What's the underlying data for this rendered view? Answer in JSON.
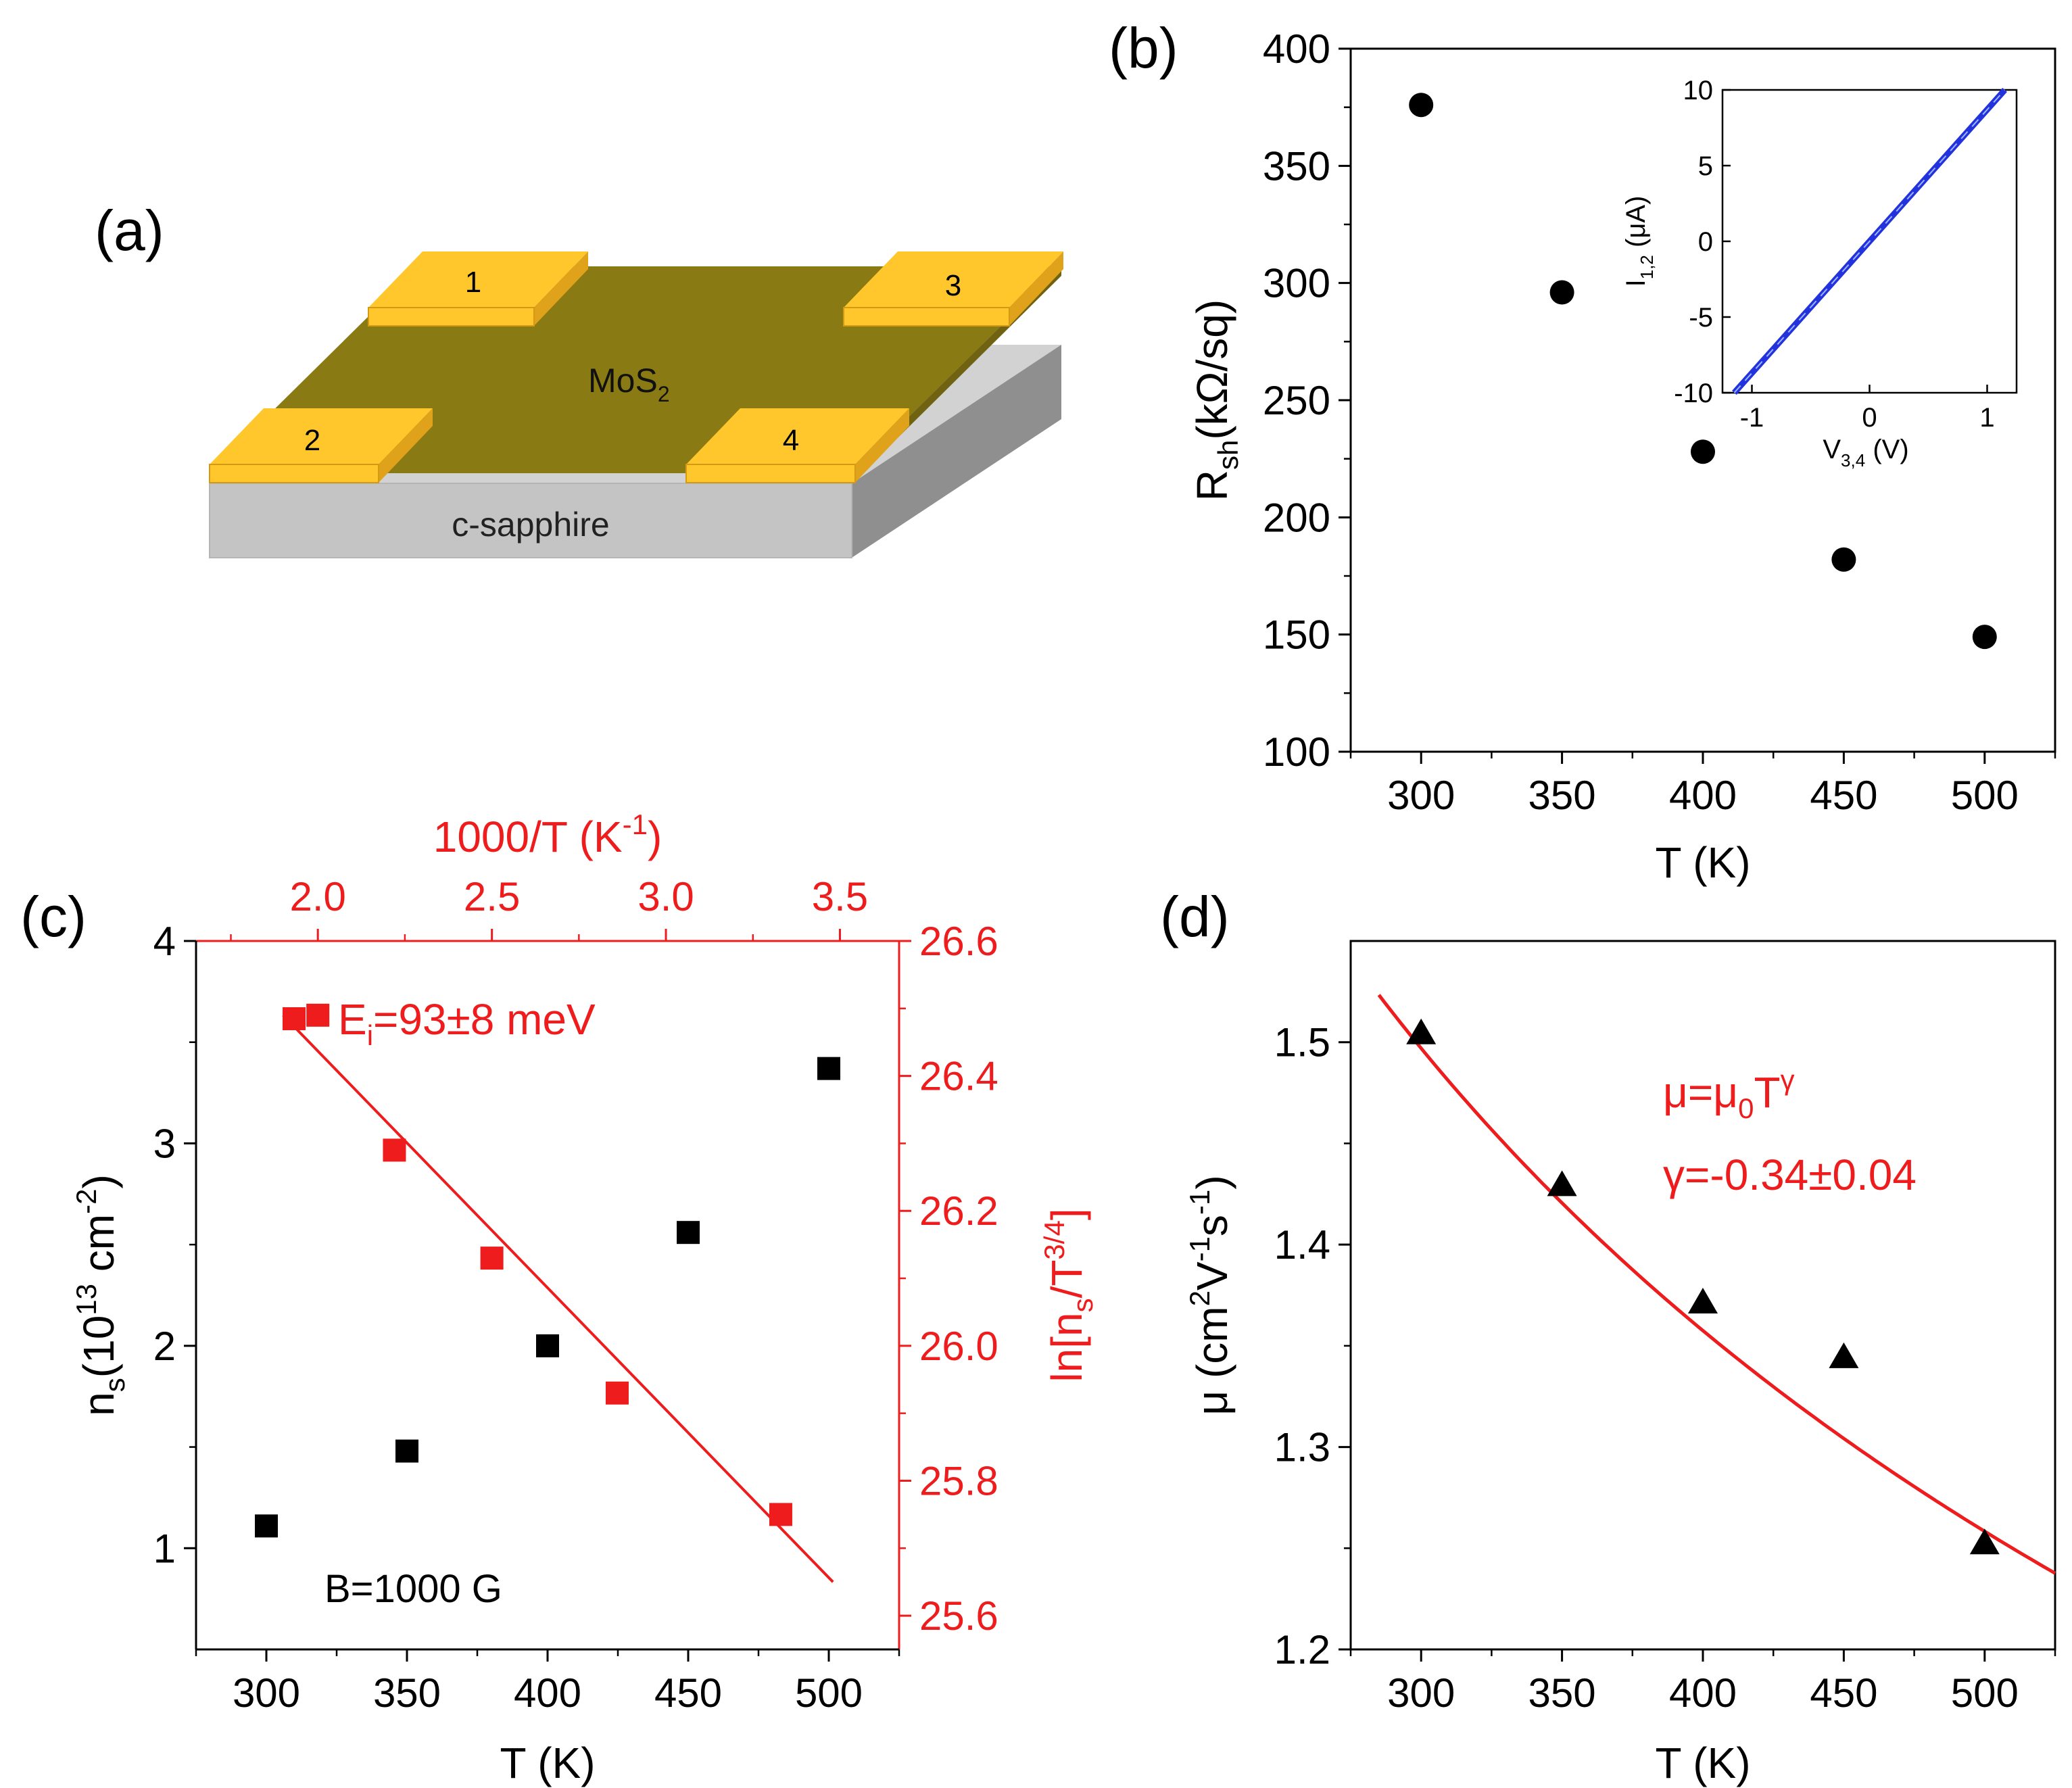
{
  "colors": {
    "black": "#000000",
    "red": "#ee1c1c",
    "blue": "#2233dd",
    "gold": "#ffc72c",
    "gold_side": "#e0a21a",
    "mos2": "#8a7a14",
    "mos2_edge": "#6f6210",
    "sapphire_top": "#d2d2d2",
    "sapphire_front": "#c4c4c4",
    "sapphire_side": "#8f8f8f"
  },
  "panel_a": {
    "label": "(a)",
    "pad_labels": [
      "1",
      "2",
      "3",
      "4"
    ],
    "film": "MoS",
    "film_sub": "2",
    "substrate": "c-sapphire"
  },
  "chart_data": [
    {
      "id": "b",
      "panel_label": "(b)",
      "type": "scatter",
      "marker": "circle",
      "x": [
        300,
        350,
        400,
        450,
        500
      ],
      "y": [
        376,
        296,
        228,
        182,
        149
      ],
      "xlim": [
        275,
        525
      ],
      "ylim": [
        100,
        400
      ],
      "xticks": [
        300,
        350,
        400,
        450,
        500
      ],
      "yticks": [
        100,
        150,
        200,
        250,
        300,
        350,
        400
      ],
      "xlabel": "T (K)",
      "ylabel": {
        "main": "R",
        "sub": "sh",
        "rest": "(kΩ/sq)"
      },
      "inset": {
        "type": "line",
        "color": "blue",
        "x": [
          -1.15,
          1.15
        ],
        "y": [
          -10,
          10
        ],
        "xlim": [
          -1.25,
          1.25
        ],
        "ylim": [
          -10,
          10
        ],
        "xticks": [
          -1,
          0,
          1
        ],
        "yticks": [
          -10,
          -5,
          0,
          5,
          10
        ],
        "xlabel": {
          "main": "V",
          "sub": "3,4",
          "rest": " (V)"
        },
        "ylabel": {
          "main": "I",
          "sub": "1,2",
          "rest": " (μA)"
        }
      }
    },
    {
      "id": "c",
      "panel_label": "(c)",
      "type": "scatter",
      "series": [
        {
          "name": "n_s (black)",
          "color": "black",
          "marker": "square",
          "axis": "bottom-left",
          "x": [
            300,
            350,
            400,
            450,
            500
          ],
          "y": [
            1.11,
            1.48,
            2.0,
            2.56,
            3.37
          ]
        },
        {
          "name": "ln[n_s/T^3/4] (red)",
          "color": "red",
          "marker": "square",
          "axis": "top-right",
          "x": [
            2.0,
            2.22,
            2.5,
            2.86,
            3.33
          ],
          "y": [
            26.49,
            26.29,
            26.13,
            25.93,
            25.75
          ]
        }
      ],
      "fit_line": {
        "color": "red",
        "axis": "top-right",
        "x": [
          1.9,
          3.48
        ],
        "y": [
          26.49,
          25.65
        ]
      },
      "xlim_bottom": [
        275,
        525
      ],
      "ylim_left": [
        0.5,
        4
      ],
      "xlim_top": [
        1.65,
        3.67
      ],
      "ylim_right": [
        25.55,
        26.6
      ],
      "xticks_bottom": [
        300,
        350,
        400,
        450,
        500
      ],
      "yticks_left": [
        1,
        2,
        3,
        4
      ],
      "xticks_top": [
        "2.0",
        "2.5",
        "3.0",
        "3.5"
      ],
      "yticks_right": [
        "25.6",
        "25.8",
        "26.0",
        "26.2",
        "26.4",
        "26.6"
      ],
      "xlabel_bottom": "T (K)",
      "xlabel_top": {
        "main": "1000/T (K",
        "sup": "-1",
        "rest": ")"
      },
      "ylabel_left": {
        "main": "n",
        "sub": "s",
        "p1": "(10",
        "sup": "13",
        "p2": " cm",
        "sup2": "-2",
        "p3": ")"
      },
      "ylabel_right": {
        "main": "ln[n",
        "sub": "s",
        "p1": "/T",
        "sup": "3/4",
        "p2": "]"
      },
      "legend": {
        "label": {
          "main": "E",
          "sub": "i",
          "rest": "=93±8 meV"
        },
        "color": "red",
        "position": "top-left"
      },
      "annotation": "B=1000 G"
    },
    {
      "id": "d",
      "panel_label": "(d)",
      "type": "scatter",
      "marker": "triangle",
      "x": [
        300,
        350,
        400,
        450,
        500
      ],
      "y": [
        1.505,
        1.43,
        1.372,
        1.345,
        1.253
      ],
      "fit": {
        "color": "red",
        "model": "mu = mu0 * T^gamma",
        "gamma": -0.34,
        "mu_at_300": 1.497,
        "x_range": [
          285,
          525
        ]
      },
      "xlim": [
        275,
        525
      ],
      "ylim": [
        1.2,
        1.55
      ],
      "xticks": [
        300,
        350,
        400,
        450,
        500
      ],
      "yticks": [
        "1.2",
        "1.3",
        "1.4",
        "1.5"
      ],
      "xlabel": "T (K)",
      "ylabel": {
        "main": "μ (cm",
        "sup": "2",
        "p1": "V",
        "sup2": "-1",
        "p2": "s",
        "sup3": "-1",
        "p3": ")"
      },
      "annotation_formula": {
        "main": "μ=μ",
        "sub": "0",
        "rest": "T",
        "sup": "γ"
      },
      "annotation_gamma": "γ=-0.34±0.04"
    }
  ]
}
